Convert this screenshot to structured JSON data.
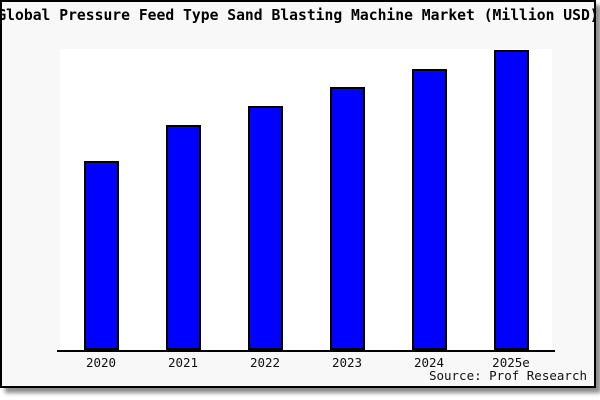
{
  "window": {
    "outer_background": "#ffffff",
    "frame_background": "#f8f8f8",
    "frame_border_color": "#000000",
    "plot_background": "#ffffff",
    "axis_color": "#000000",
    "text_color": "#000000"
  },
  "chart_data": {
    "type": "bar",
    "title": "Global Pressure Feed Type Sand Blasting Machine Market (Million USD)",
    "categories": [
      "2020",
      "2021",
      "2022",
      "2023",
      "2024",
      "2025e"
    ],
    "values": [
      63,
      75,
      81.3,
      87.7,
      93.7,
      100
    ],
    "values_note": "y-axis has no tick labels or gridlines; values are relative heights normalized to 2025e = 100",
    "xlabel": "",
    "ylabel": "",
    "ylim": [
      0,
      100
    ],
    "grid": false,
    "legend": "none",
    "bar_color": "#0000ff",
    "bar_border_color": "#000000",
    "source": "Source: Prof Research"
  }
}
